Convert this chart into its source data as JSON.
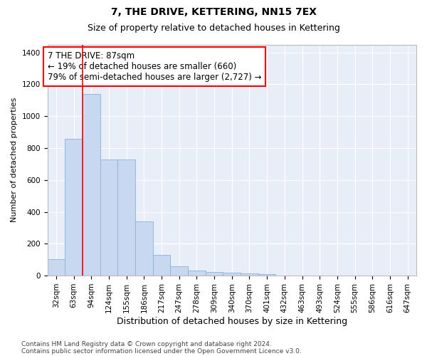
{
  "title": "7, THE DRIVE, KETTERING, NN15 7EX",
  "subtitle": "Size of property relative to detached houses in Kettering",
  "xlabel": "Distribution of detached houses by size in Kettering",
  "ylabel": "Number of detached properties",
  "bar_color": "#c8d8f0",
  "bar_edge_color": "#8ab0d8",
  "background_color": "#e8eef8",
  "grid_color": "#ffffff",
  "categories": [
    "32sqm",
    "63sqm",
    "94sqm",
    "124sqm",
    "155sqm",
    "186sqm",
    "217sqm",
    "247sqm",
    "278sqm",
    "309sqm",
    "340sqm",
    "370sqm",
    "401sqm",
    "432sqm",
    "463sqm",
    "493sqm",
    "524sqm",
    "555sqm",
    "586sqm",
    "616sqm",
    "647sqm"
  ],
  "values": [
    103,
    860,
    1140,
    730,
    730,
    340,
    130,
    60,
    30,
    25,
    20,
    15,
    10,
    0,
    0,
    0,
    0,
    0,
    0,
    0,
    0
  ],
  "ylim": [
    0,
    1450
  ],
  "yticks": [
    0,
    200,
    400,
    600,
    800,
    1000,
    1200,
    1400
  ],
  "annotation_line1": "7 THE DRIVE: 87sqm",
  "annotation_line2": "← 19% of detached houses are smaller (660)",
  "annotation_line3": "79% of semi-detached houses are larger (2,727) →",
  "footer_line1": "Contains HM Land Registry data © Crown copyright and database right 2024.",
  "footer_line2": "Contains public sector information licensed under the Open Government Licence v3.0.",
  "title_fontsize": 10,
  "subtitle_fontsize": 9,
  "xlabel_fontsize": 9,
  "ylabel_fontsize": 8,
  "tick_fontsize": 7.5,
  "annotation_fontsize": 8.5,
  "footer_fontsize": 6.5
}
